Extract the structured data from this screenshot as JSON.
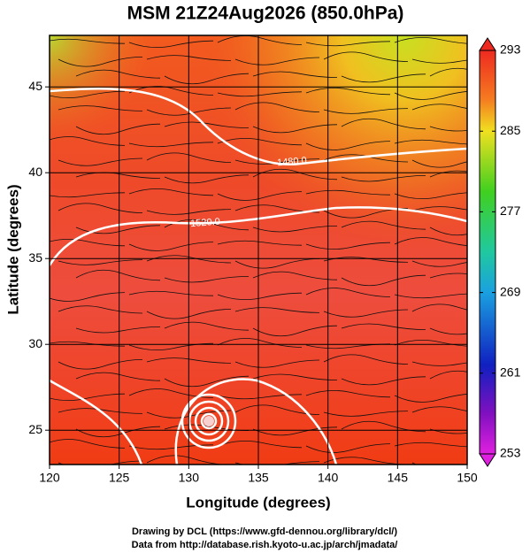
{
  "chart_data": {
    "type": "map",
    "title": "MSM 21Z24Aug2026 (850.0hPa)",
    "x_label": "Longitude (degrees)",
    "y_label": "Latitude  (degrees)",
    "xlim": [
      120,
      150
    ],
    "ylim": [
      23,
      48
    ],
    "xticks": [
      120,
      125,
      130,
      135,
      140,
      145,
      150
    ],
    "yticks": [
      25,
      30,
      35,
      40,
      45
    ],
    "grid": true,
    "colorbar": {
      "lim": [
        253,
        293
      ],
      "ticks": [
        253,
        261,
        269,
        277,
        285,
        293
      ]
    },
    "contour_labels": [
      "1480.0",
      "1520.0"
    ]
  },
  "footer": {
    "line1": "Drawing by DCL (https://www.gfd-dennou.org/library/dcl/)",
    "line2": "Data from http://database.rish.kyoto-u.ac.jp/arch/jmadata/"
  }
}
